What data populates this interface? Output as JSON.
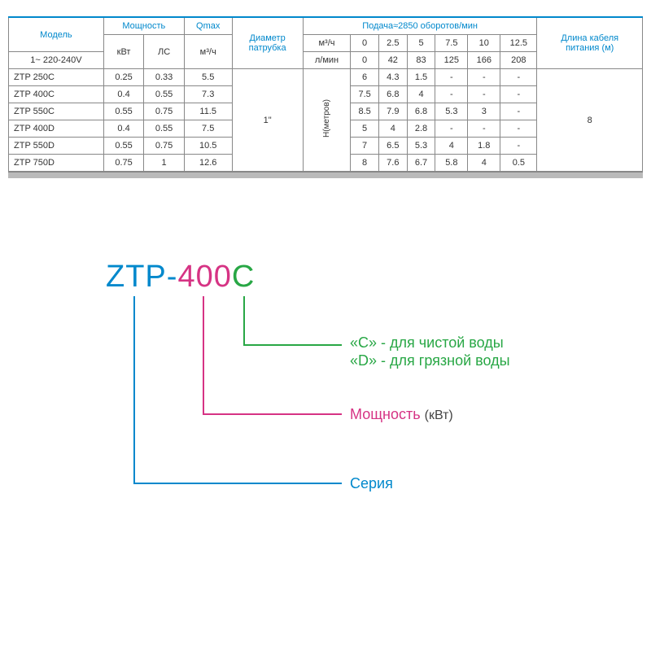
{
  "table": {
    "headers": {
      "model": "Модель",
      "power": "Мощность",
      "qmax": "Qmax",
      "pipe": "Диаметр\nпатрубка",
      "feed": "Подача≈2850 оборотов/мин",
      "cable": "Длина кабеля\nпитания (м)",
      "voltage": "1~ 220-240V",
      "kw": "кВт",
      "hp": "ЛС",
      "m3h": "м³/ч",
      "m3h2": "м³/ч",
      "lmin": "л/мин",
      "hmeters": "Н(метров)"
    },
    "flow_m3h": [
      "0",
      "2.5",
      "5",
      "7.5",
      "10",
      "12.5"
    ],
    "flow_lmin": [
      "0",
      "42",
      "83",
      "125",
      "166",
      "208"
    ],
    "pipe_value": "1\"",
    "cable_value": "8",
    "rows": [
      {
        "model": "ZTP 250С",
        "kw": "0.25",
        "hp": "0.33",
        "qmax": "5.5",
        "h": [
          "6",
          "4.3",
          "1.5",
          "-",
          "-",
          "-"
        ]
      },
      {
        "model": "ZTP 400C",
        "kw": "0.4",
        "hp": "0.55",
        "qmax": "7.3",
        "h": [
          "7.5",
          "6.8",
          "4",
          "-",
          "-",
          "-"
        ]
      },
      {
        "model": "ZTP 550C",
        "kw": "0.55",
        "hp": "0.75",
        "qmax": "11.5",
        "h": [
          "8.5",
          "7.9",
          "6.8",
          "5.3",
          "3",
          "-"
        ]
      },
      {
        "model": "ZTP 400D",
        "kw": "0.4",
        "hp": "0.55",
        "qmax": "7.5",
        "h": [
          "5",
          "4",
          "2.8",
          "-",
          "-",
          "-"
        ]
      },
      {
        "model": "ZTP 550D",
        "kw": "0.55",
        "hp": "0.75",
        "qmax": "10.5",
        "h": [
          "7",
          "6.5",
          "5.3",
          "4",
          "1.8",
          "-"
        ]
      },
      {
        "model": "ZTP 750D",
        "kw": "0.75",
        "hp": "1",
        "qmax": "12.6",
        "h": [
          "8",
          "7.6",
          "6.7",
          "5.8",
          "4",
          "0.5"
        ]
      }
    ]
  },
  "diagram": {
    "code": {
      "ztp": "ZTP",
      "dash": "-",
      "num": "400",
      "suffix": "C"
    },
    "labels": {
      "c_line": "«C» - для чистой воды",
      "d_line": "«D» - для грязной воды",
      "power": "Мощность",
      "power_unit": "(кВт)",
      "series": "Серия"
    },
    "colors": {
      "blue": "#0088cc",
      "pink": "#d63384",
      "green": "#28a745",
      "gray": "#444444"
    },
    "line_width": 2
  }
}
